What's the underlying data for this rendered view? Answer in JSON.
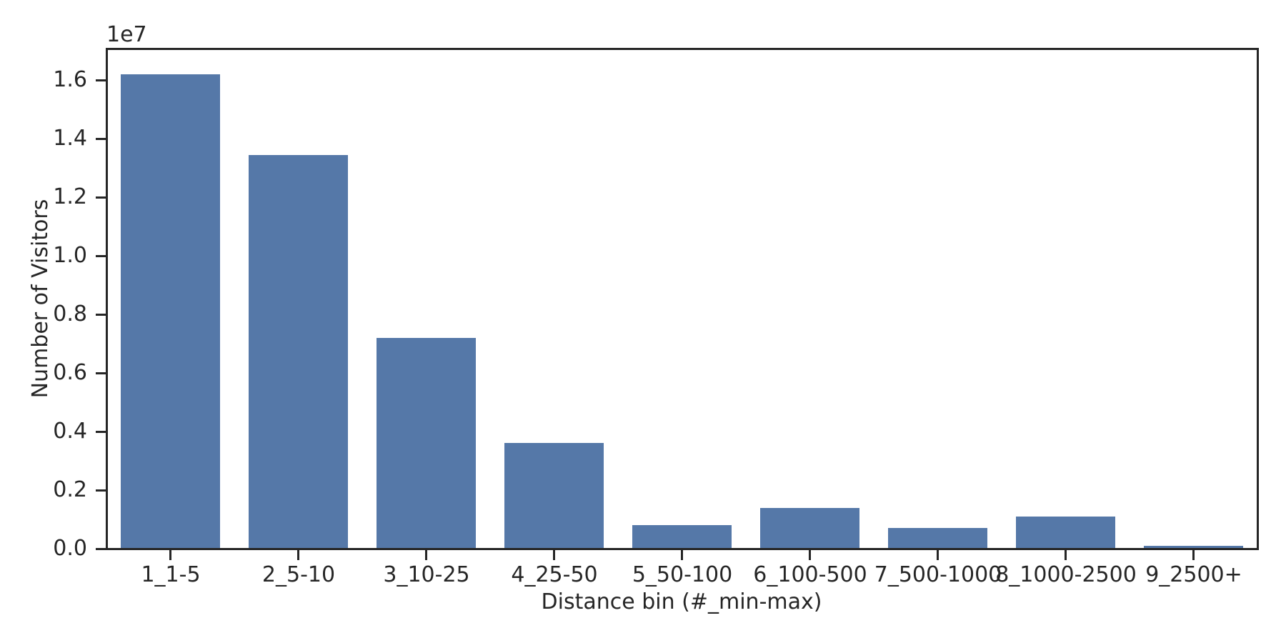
{
  "figure": {
    "background": "#ffffff",
    "axis_color": "#262626",
    "text_color": "#262626"
  },
  "chart_data": {
    "type": "bar",
    "title": "",
    "xlabel": "Distance bin (#_min-max)",
    "ylabel": "Number of Visitors",
    "y_offset_label": "1e7",
    "categories": [
      "1_1-5",
      "2_5-10",
      "3_10-25",
      "4_25-50",
      "5_50-100",
      "6_100-500",
      "7_500-1000",
      "8_1000-2500",
      "9_2500+"
    ],
    "values": [
      16200000,
      13450000,
      7200000,
      3600000,
      800000,
      1400000,
      700000,
      1100000,
      100000
    ],
    "y_tick_values": [
      0,
      2000000,
      4000000,
      6000000,
      8000000,
      10000000,
      12000000,
      14000000,
      16000000
    ],
    "y_tick_labels": [
      "0.0",
      "0.2",
      "0.4",
      "0.6",
      "0.8",
      "1.0",
      "1.2",
      "1.4",
      "1.6"
    ],
    "ylim": [
      0,
      17073000
    ],
    "grid": false,
    "legend": null,
    "bar_color": "#5578A8"
  }
}
